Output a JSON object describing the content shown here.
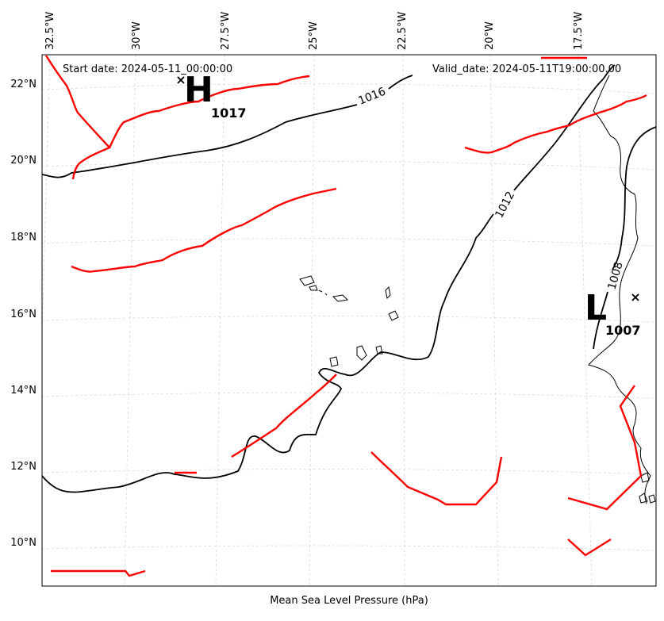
{
  "map": {
    "start_date": "Start date: 2024-05-11_00:00:00",
    "valid_date": "Valid_date: 2024-05-11T19:00:00.00",
    "xlabel": "Mean Sea Level Pressure (hPa)",
    "lon_labels": [
      "32.5°W",
      "30°W",
      "27.5°W",
      "25°W",
      "22.5°W",
      "20°W",
      "17.5°W"
    ],
    "lat_labels": [
      "22°N",
      "20°N",
      "18°N",
      "16°N",
      "14°N",
      "12°N",
      "10°N"
    ],
    "contours": [
      "1016",
      "1012",
      "1008"
    ],
    "high": {
      "letter": "H",
      "value": "1017"
    },
    "low": {
      "letter": "L",
      "value": "1007"
    },
    "colors": {
      "isobar": "#000000",
      "front": "#ff0000",
      "coast": "#000000",
      "grid": "#cccccc"
    }
  }
}
